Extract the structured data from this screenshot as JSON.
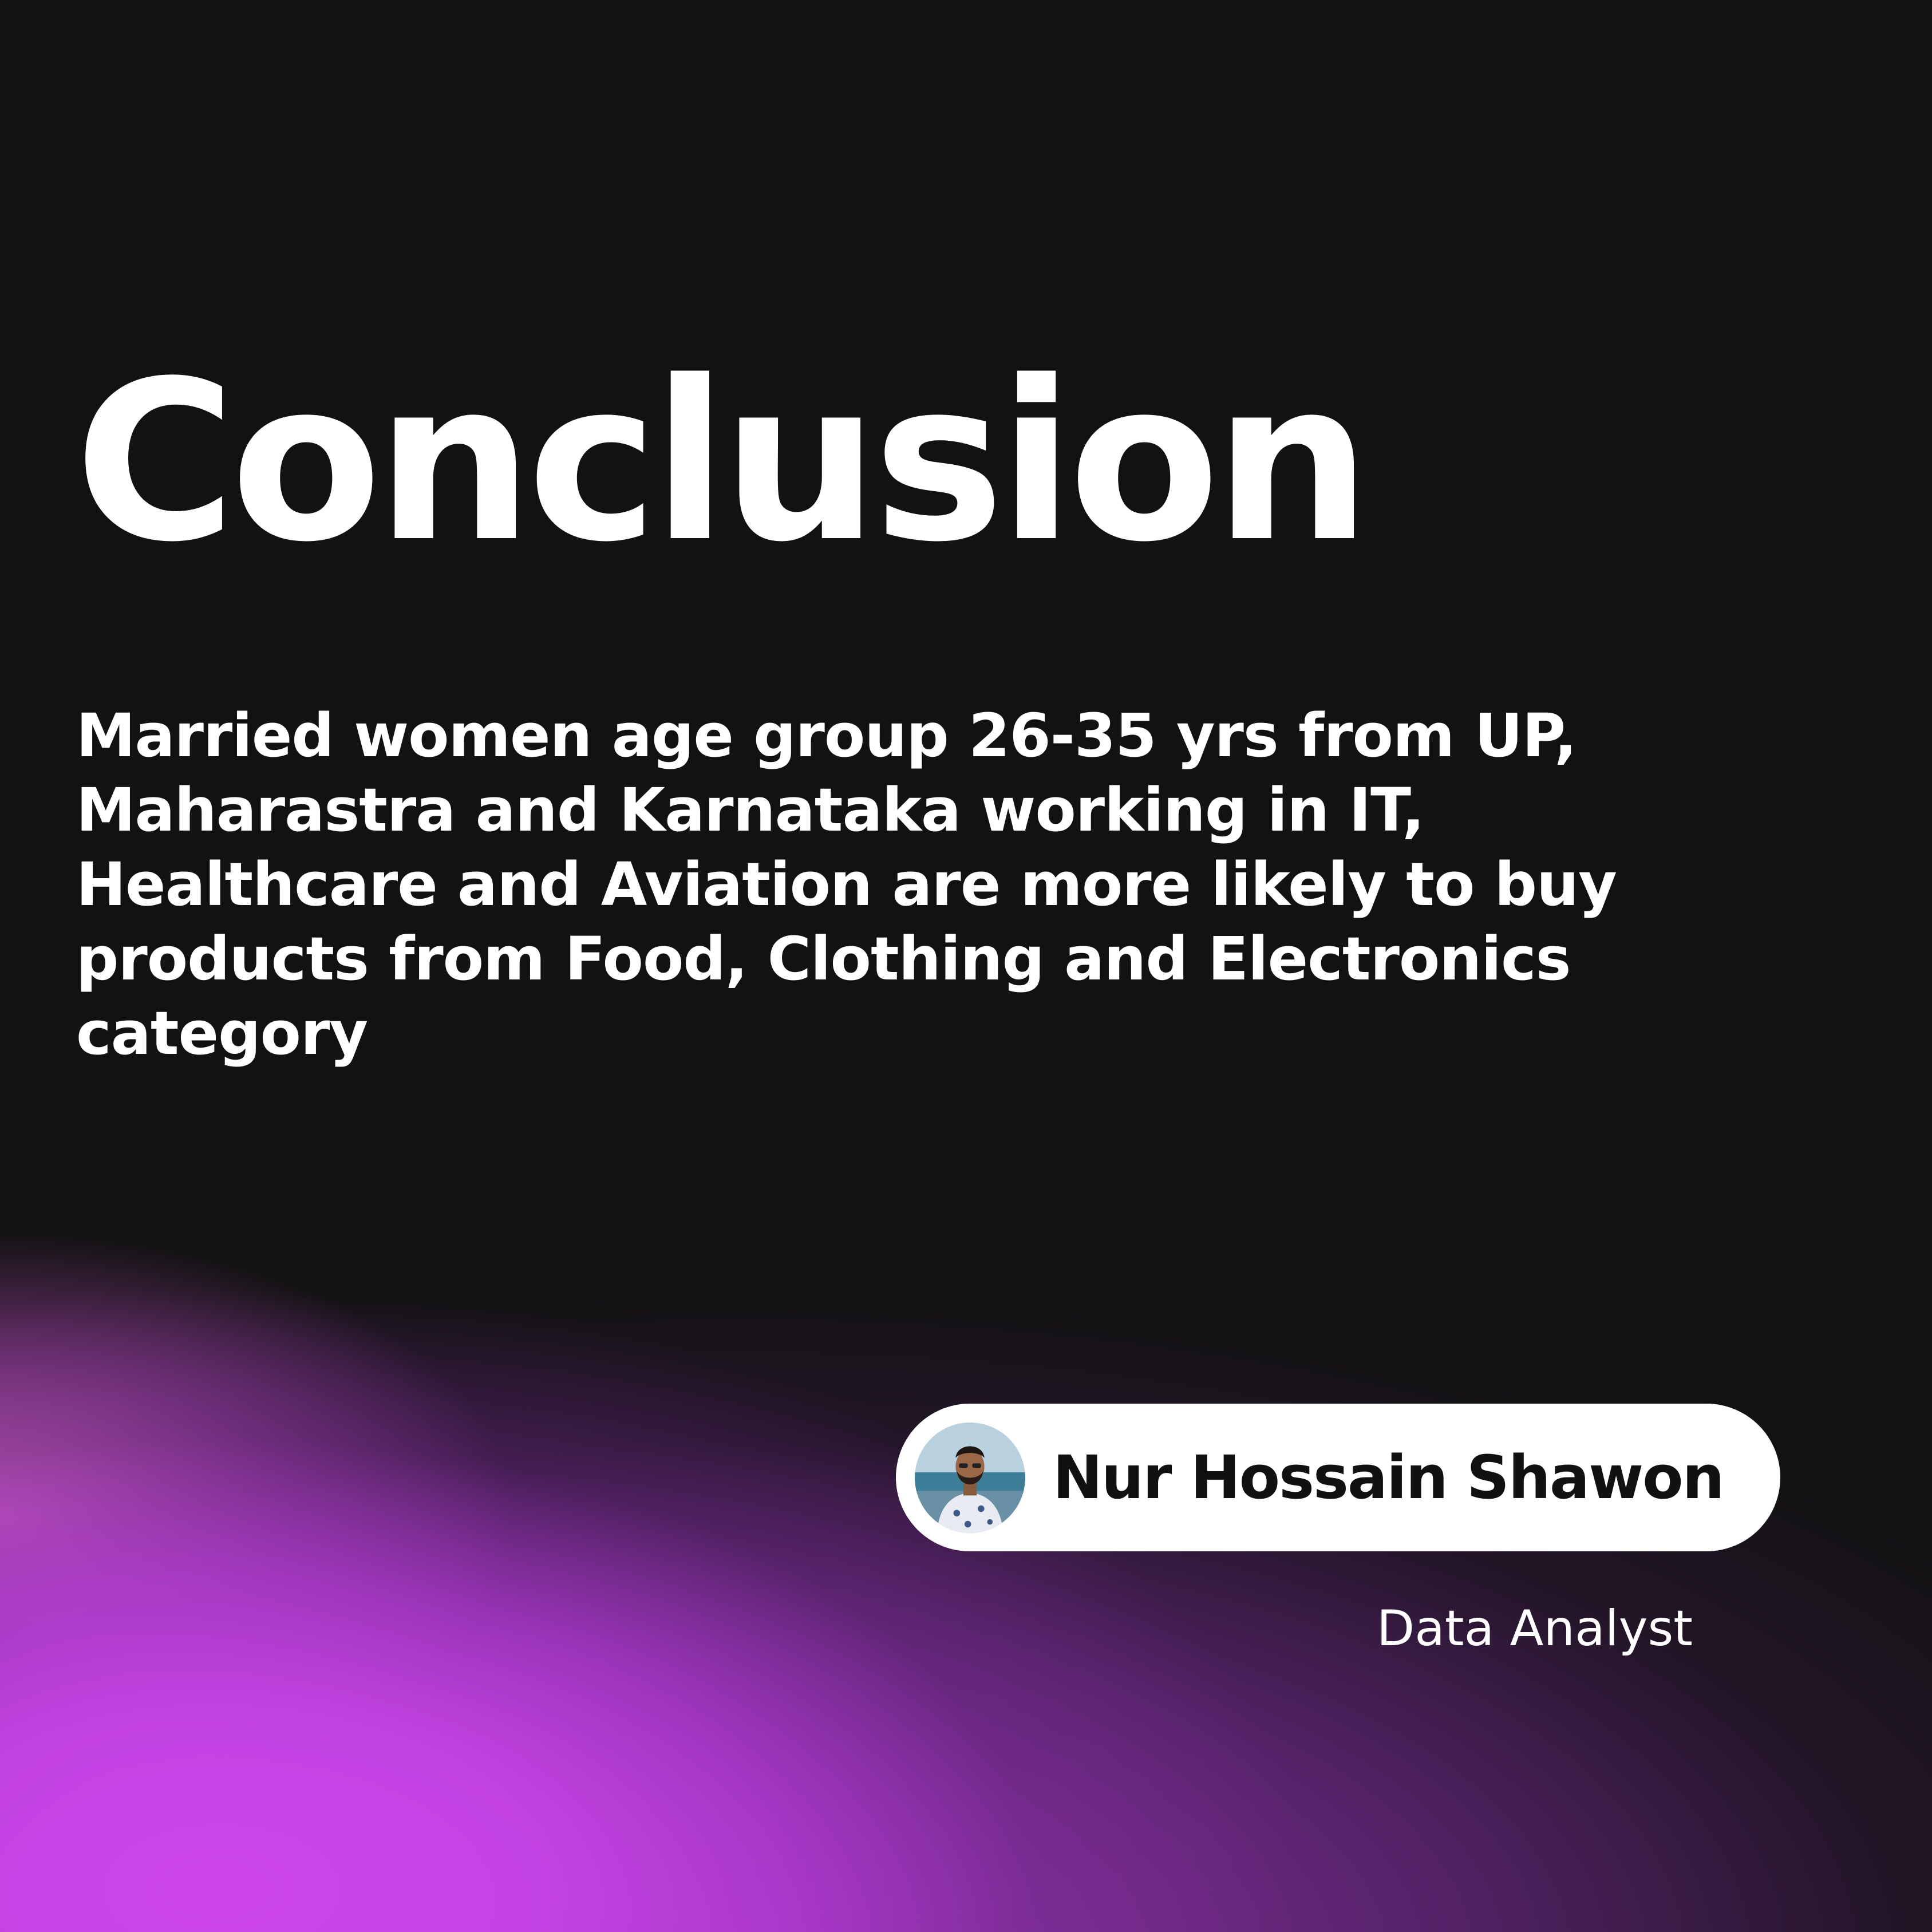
{
  "slide": {
    "title": "Conclusion",
    "body": "Married women age group 26-35 yrs from UP, Maharastra and Karnataka working in IT, Healthcare and Aviation are more likely to buy products from Food, Clothing and Electronics category"
  },
  "author": {
    "name": "Nur Hossain Shawon",
    "role": "Data Analyst"
  },
  "colors": {
    "background": "#121212",
    "accent_gradient": "#c844e8",
    "text": "#ffffff",
    "pill_background": "#ffffff",
    "pill_text": "#111111"
  }
}
